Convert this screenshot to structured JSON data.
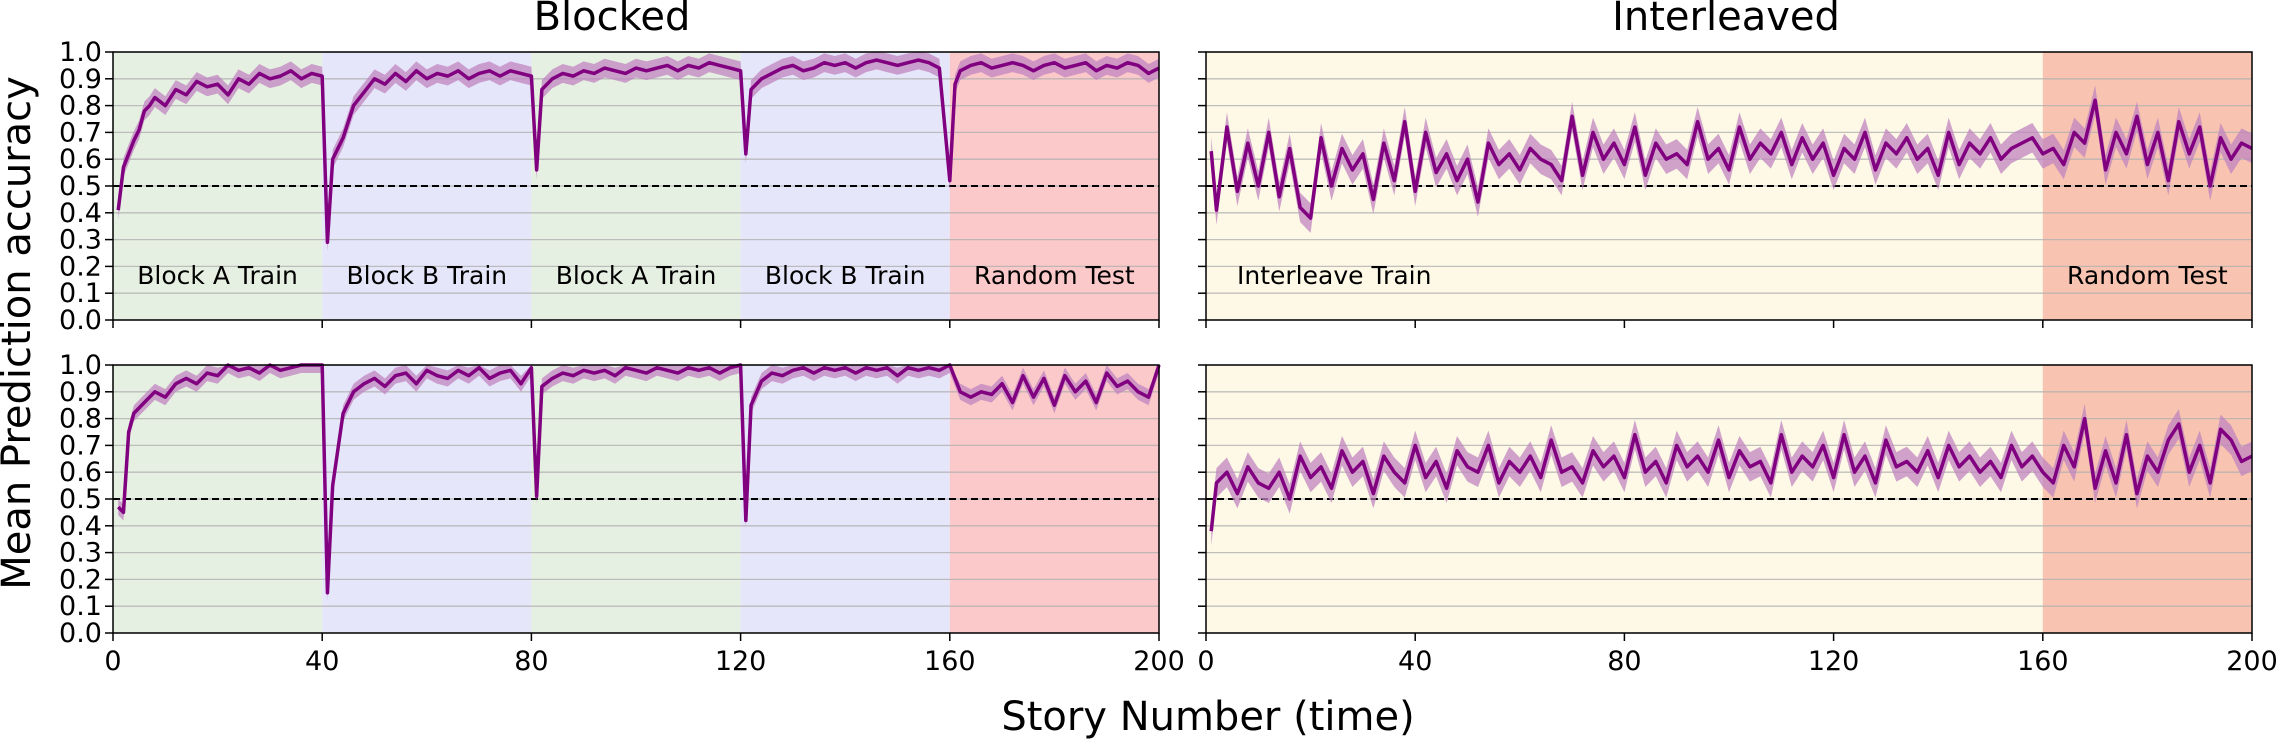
{
  "figure": {
    "ylabel": "Mean Prediction accuracy",
    "xlabel": "Story Number (time)"
  },
  "colors": {
    "line": "#800080",
    "band": "#c084c0",
    "block_a": "#e6f0e2",
    "block_b": "#e6e6fa",
    "random_test": "#fbc9c9",
    "interleave_train": "#fdf9e6",
    "interleave_random_test": "#f8c3b0",
    "chance_line": "#000000",
    "grid": "#b0b0b0"
  },
  "chart_data": [
    {
      "type": "line",
      "panel": "top-left",
      "title": "Blocked",
      "xlim": [
        0,
        200
      ],
      "ylim": [
        0.0,
        1.0
      ],
      "xticks": [
        0,
        40,
        80,
        120,
        160,
        200
      ],
      "yticks": [
        "0.0",
        "0.1",
        "0.2",
        "0.3",
        "0.4",
        "0.5",
        "0.6",
        "0.7",
        "0.8",
        "0.9",
        "1.0"
      ],
      "show_xtick_labels": false,
      "show_ytick_labels": true,
      "grid_y": true,
      "chance_level": 0.5,
      "regions": [
        {
          "label": "Block A Train",
          "x0": 0,
          "x1": 40,
          "color_key": "block_a"
        },
        {
          "label": "Block B Train",
          "x0": 40,
          "x1": 80,
          "color_key": "block_b"
        },
        {
          "label": "Block A Train",
          "x0": 80,
          "x1": 120,
          "color_key": "block_a"
        },
        {
          "label": "Block B Train",
          "x0": 120,
          "x1": 160,
          "color_key": "block_b"
        },
        {
          "label": "Random Test",
          "x0": 160,
          "x1": 200,
          "color_key": "random_test"
        }
      ],
      "series": [
        {
          "x": [
            1,
            2,
            3,
            4,
            5,
            6,
            7,
            8,
            10,
            12,
            14,
            16,
            18,
            20,
            22,
            24,
            26,
            28,
            30,
            32,
            34,
            36,
            38,
            40,
            41,
            42,
            44,
            46,
            48,
            50,
            52,
            54,
            56,
            58,
            60,
            62,
            64,
            66,
            68,
            70,
            72,
            74,
            76,
            78,
            80,
            81,
            82,
            84,
            86,
            88,
            90,
            92,
            94,
            96,
            98,
            100,
            102,
            104,
            106,
            108,
            110,
            112,
            114,
            116,
            118,
            120,
            121,
            122,
            124,
            126,
            128,
            130,
            132,
            134,
            136,
            138,
            140,
            142,
            144,
            146,
            148,
            150,
            152,
            154,
            156,
            158,
            160,
            161,
            162,
            164,
            166,
            168,
            170,
            172,
            174,
            176,
            178,
            180,
            182,
            184,
            186,
            188,
            190,
            192,
            194,
            196,
            198,
            200
          ],
          "y": [
            0.41,
            0.57,
            0.62,
            0.67,
            0.71,
            0.78,
            0.8,
            0.83,
            0.8,
            0.86,
            0.84,
            0.89,
            0.87,
            0.88,
            0.84,
            0.9,
            0.88,
            0.92,
            0.9,
            0.91,
            0.93,
            0.9,
            0.92,
            0.91,
            0.29,
            0.6,
            0.68,
            0.8,
            0.85,
            0.9,
            0.88,
            0.92,
            0.89,
            0.93,
            0.9,
            0.92,
            0.91,
            0.93,
            0.9,
            0.92,
            0.93,
            0.91,
            0.93,
            0.92,
            0.91,
            0.56,
            0.86,
            0.9,
            0.92,
            0.91,
            0.93,
            0.92,
            0.94,
            0.93,
            0.92,
            0.94,
            0.93,
            0.94,
            0.95,
            0.93,
            0.95,
            0.94,
            0.96,
            0.95,
            0.94,
            0.93,
            0.62,
            0.86,
            0.9,
            0.92,
            0.94,
            0.95,
            0.93,
            0.94,
            0.96,
            0.95,
            0.96,
            0.94,
            0.96,
            0.97,
            0.96,
            0.95,
            0.96,
            0.97,
            0.96,
            0.94,
            0.52,
            0.88,
            0.93,
            0.95,
            0.96,
            0.94,
            0.95,
            0.96,
            0.95,
            0.93,
            0.95,
            0.96,
            0.94,
            0.95,
            0.96,
            0.93,
            0.95,
            0.94,
            0.96,
            0.95,
            0.92,
            0.94
          ],
          "err": 0.035
        }
      ]
    },
    {
      "type": "line",
      "panel": "top-right",
      "title": "Interleaved",
      "xlim": [
        0,
        200
      ],
      "ylim": [
        0.0,
        1.0
      ],
      "xticks": [
        0,
        40,
        80,
        120,
        160,
        200
      ],
      "yticks": [
        "0.0",
        "0.1",
        "0.2",
        "0.3",
        "0.4",
        "0.5",
        "0.6",
        "0.7",
        "0.8",
        "0.9",
        "1.0"
      ],
      "show_xtick_labels": false,
      "show_ytick_labels": false,
      "grid_y": true,
      "chance_level": 0.5,
      "regions": [
        {
          "label": "Interleave Train",
          "x0": 0,
          "x1": 160,
          "color_key": "interleave_train"
        },
        {
          "label": "Random Test",
          "x0": 160,
          "x1": 200,
          "color_key": "interleave_random_test"
        }
      ],
      "series": [
        {
          "x": [
            1,
            2,
            4,
            6,
            8,
            10,
            12,
            14,
            16,
            18,
            20,
            22,
            24,
            26,
            28,
            30,
            32,
            34,
            36,
            38,
            40,
            42,
            44,
            46,
            48,
            50,
            52,
            54,
            56,
            58,
            60,
            62,
            64,
            66,
            68,
            70,
            72,
            74,
            76,
            78,
            80,
            82,
            84,
            86,
            88,
            90,
            92,
            94,
            96,
            98,
            100,
            102,
            104,
            106,
            108,
            110,
            112,
            114,
            116,
            118,
            120,
            122,
            124,
            126,
            128,
            130,
            132,
            134,
            136,
            138,
            140,
            142,
            144,
            146,
            148,
            150,
            152,
            154,
            156,
            158,
            160,
            162,
            164,
            166,
            168,
            170,
            172,
            174,
            176,
            178,
            180,
            182,
            184,
            186,
            188,
            190,
            192,
            194,
            196,
            198,
            200
          ],
          "y": [
            0.63,
            0.41,
            0.72,
            0.48,
            0.66,
            0.5,
            0.7,
            0.46,
            0.64,
            0.42,
            0.38,
            0.68,
            0.5,
            0.64,
            0.56,
            0.62,
            0.45,
            0.66,
            0.52,
            0.74,
            0.48,
            0.7,
            0.55,
            0.62,
            0.52,
            0.6,
            0.44,
            0.66,
            0.58,
            0.62,
            0.56,
            0.64,
            0.6,
            0.58,
            0.52,
            0.76,
            0.54,
            0.7,
            0.6,
            0.66,
            0.58,
            0.72,
            0.54,
            0.66,
            0.6,
            0.62,
            0.58,
            0.74,
            0.6,
            0.64,
            0.56,
            0.72,
            0.6,
            0.66,
            0.62,
            0.7,
            0.58,
            0.68,
            0.6,
            0.66,
            0.54,
            0.64,
            0.6,
            0.7,
            0.56,
            0.66,
            0.62,
            0.68,
            0.6,
            0.64,
            0.54,
            0.7,
            0.58,
            0.66,
            0.62,
            0.68,
            0.6,
            0.64,
            0.66,
            0.68,
            0.62,
            0.64,
            0.58,
            0.7,
            0.66,
            0.82,
            0.56,
            0.7,
            0.62,
            0.76,
            0.58,
            0.7,
            0.52,
            0.74,
            0.62,
            0.72,
            0.5,
            0.68,
            0.6,
            0.66,
            0.64
          ],
          "err": 0.055
        }
      ]
    },
    {
      "type": "line",
      "panel": "bottom-left",
      "title": "",
      "xlim": [
        0,
        200
      ],
      "ylim": [
        0.0,
        1.0
      ],
      "xticks": [
        0,
        40,
        80,
        120,
        160,
        200
      ],
      "yticks": [
        "0.0",
        "0.1",
        "0.2",
        "0.3",
        "0.4",
        "0.5",
        "0.6",
        "0.7",
        "0.8",
        "0.9",
        "1.0"
      ],
      "xtick_labels": [
        "0",
        "40",
        "80",
        "120",
        "160",
        "200"
      ],
      "show_xtick_labels": true,
      "show_ytick_labels": true,
      "grid_y": true,
      "chance_level": 0.5,
      "regions": [
        {
          "label": "",
          "x0": 0,
          "x1": 40,
          "color_key": "block_a"
        },
        {
          "label": "",
          "x0": 40,
          "x1": 80,
          "color_key": "block_b"
        },
        {
          "label": "",
          "x0": 80,
          "x1": 120,
          "color_key": "block_a"
        },
        {
          "label": "",
          "x0": 120,
          "x1": 160,
          "color_key": "block_b"
        },
        {
          "label": "",
          "x0": 160,
          "x1": 200,
          "color_key": "random_test"
        }
      ],
      "series": [
        {
          "x": [
            1,
            2,
            3,
            4,
            6,
            8,
            10,
            12,
            14,
            16,
            18,
            20,
            22,
            24,
            26,
            28,
            30,
            32,
            34,
            36,
            38,
            40,
            41,
            42,
            44,
            46,
            48,
            50,
            52,
            54,
            56,
            58,
            60,
            62,
            64,
            66,
            68,
            70,
            72,
            74,
            76,
            78,
            80,
            81,
            82,
            84,
            86,
            88,
            90,
            92,
            94,
            96,
            98,
            100,
            102,
            104,
            106,
            108,
            110,
            112,
            114,
            116,
            118,
            120,
            121,
            122,
            124,
            126,
            128,
            130,
            132,
            134,
            136,
            138,
            140,
            142,
            144,
            146,
            148,
            150,
            152,
            154,
            156,
            158,
            160,
            162,
            164,
            166,
            168,
            170,
            172,
            174,
            176,
            178,
            180,
            182,
            184,
            186,
            188,
            190,
            192,
            194,
            196,
            198,
            200
          ],
          "y": [
            0.47,
            0.45,
            0.75,
            0.82,
            0.86,
            0.9,
            0.88,
            0.93,
            0.95,
            0.93,
            0.97,
            0.96,
            1.0,
            0.98,
            0.99,
            0.97,
            1.0,
            0.98,
            0.99,
            1.0,
            1.0,
            1.0,
            0.15,
            0.55,
            0.82,
            0.9,
            0.93,
            0.95,
            0.92,
            0.96,
            0.97,
            0.93,
            0.98,
            0.96,
            0.95,
            0.98,
            0.96,
            0.99,
            0.95,
            0.97,
            0.98,
            0.93,
            0.99,
            0.51,
            0.92,
            0.95,
            0.97,
            0.96,
            0.98,
            0.97,
            0.98,
            0.96,
            0.99,
            0.98,
            0.97,
            0.99,
            0.98,
            0.97,
            0.99,
            0.98,
            0.99,
            0.97,
            0.99,
            1.0,
            0.42,
            0.85,
            0.94,
            0.97,
            0.96,
            0.98,
            0.99,
            0.97,
            0.99,
            0.98,
            0.99,
            0.97,
            0.99,
            0.98,
            0.99,
            0.96,
            0.99,
            0.98,
            0.99,
            0.98,
            1.0,
            0.9,
            0.88,
            0.9,
            0.89,
            0.93,
            0.86,
            0.96,
            0.88,
            0.95,
            0.85,
            0.96,
            0.9,
            0.94,
            0.86,
            0.97,
            0.92,
            0.94,
            0.9,
            0.88,
            1.0
          ],
          "err": 0.03
        }
      ]
    },
    {
      "type": "line",
      "panel": "bottom-right",
      "title": "",
      "xlim": [
        0,
        200
      ],
      "ylim": [
        0.0,
        1.0
      ],
      "xticks": [
        0,
        40,
        80,
        120,
        160,
        200
      ],
      "yticks": [
        "0.0",
        "0.1",
        "0.2",
        "0.3",
        "0.4",
        "0.5",
        "0.6",
        "0.7",
        "0.8",
        "0.9",
        "1.0"
      ],
      "xtick_labels": [
        "0",
        "40",
        "80",
        "120",
        "160",
        "200"
      ],
      "show_xtick_labels": true,
      "show_ytick_labels": false,
      "grid_y": true,
      "chance_level": 0.5,
      "regions": [
        {
          "label": "",
          "x0": 0,
          "x1": 160,
          "color_key": "interleave_train"
        },
        {
          "label": "",
          "x0": 160,
          "x1": 200,
          "color_key": "interleave_random_test"
        }
      ],
      "series": [
        {
          "x": [
            1,
            2,
            4,
            6,
            8,
            10,
            12,
            14,
            16,
            18,
            20,
            22,
            24,
            26,
            28,
            30,
            32,
            34,
            36,
            38,
            40,
            42,
            44,
            46,
            48,
            50,
            52,
            54,
            56,
            58,
            60,
            62,
            64,
            66,
            68,
            70,
            72,
            74,
            76,
            78,
            80,
            82,
            84,
            86,
            88,
            90,
            92,
            94,
            96,
            98,
            100,
            102,
            104,
            106,
            108,
            110,
            112,
            114,
            116,
            118,
            120,
            122,
            124,
            126,
            128,
            130,
            132,
            134,
            136,
            138,
            140,
            142,
            144,
            146,
            148,
            150,
            152,
            154,
            156,
            158,
            160,
            162,
            164,
            166,
            168,
            170,
            172,
            174,
            176,
            178,
            180,
            182,
            184,
            186,
            188,
            190,
            192,
            194,
            196,
            198,
            200
          ],
          "y": [
            0.38,
            0.56,
            0.6,
            0.52,
            0.62,
            0.56,
            0.54,
            0.6,
            0.5,
            0.66,
            0.58,
            0.62,
            0.54,
            0.68,
            0.6,
            0.64,
            0.52,
            0.66,
            0.6,
            0.56,
            0.7,
            0.58,
            0.64,
            0.54,
            0.68,
            0.62,
            0.6,
            0.7,
            0.56,
            0.64,
            0.6,
            0.66,
            0.58,
            0.72,
            0.6,
            0.62,
            0.56,
            0.68,
            0.62,
            0.66,
            0.58,
            0.74,
            0.6,
            0.64,
            0.56,
            0.7,
            0.62,
            0.66,
            0.6,
            0.72,
            0.58,
            0.68,
            0.62,
            0.64,
            0.56,
            0.74,
            0.6,
            0.66,
            0.62,
            0.7,
            0.58,
            0.74,
            0.6,
            0.66,
            0.56,
            0.72,
            0.62,
            0.64,
            0.6,
            0.68,
            0.58,
            0.7,
            0.62,
            0.66,
            0.6,
            0.64,
            0.58,
            0.7,
            0.62,
            0.66,
            0.6,
            0.56,
            0.7,
            0.62,
            0.8,
            0.54,
            0.68,
            0.56,
            0.74,
            0.52,
            0.66,
            0.6,
            0.72,
            0.78,
            0.6,
            0.7,
            0.56,
            0.76,
            0.72,
            0.64,
            0.66
          ],
          "err": 0.055
        }
      ]
    }
  ]
}
